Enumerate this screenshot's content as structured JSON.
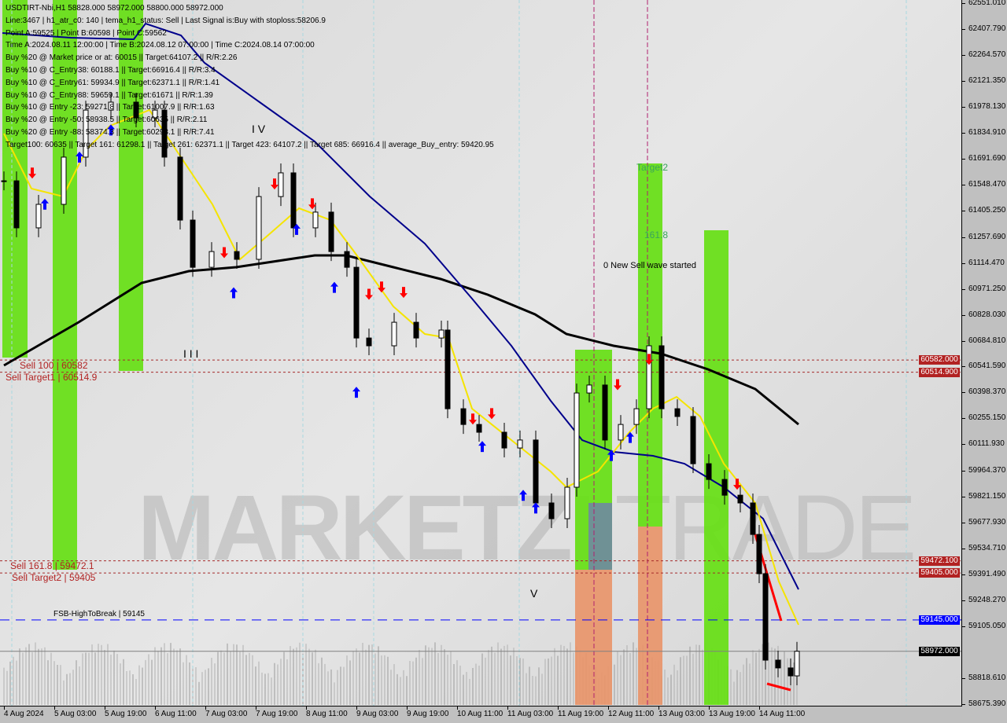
{
  "header": {
    "lines": [
      "USDTIRT-Nbi,H1  58828.000 58972.000 58800.000 58972.000",
      "Line:3467 | h1_atr_c0: 140 | tema_h1_status: Sell | Last Signal is:Buy with stoploss:58206.9",
      "Point A:59525 | Point B:60598 | Point C:59562",
      "Time A:2024.08.11 12:00:00 | Time B:2024.08.12 07:00:00 | Time C:2024.08.14 07:00:00",
      "Buy %20 @ Market price or at: 60015 || Target:64107.2 || R/R:2.26",
      "Buy %10 @ C_Entry38: 60188.1 || Target:66916.4 || R/R:3.4",
      "Buy %10 @ C_Entry61: 59934.9 || Target:62371.1 || R/R:1.41",
      "Buy %10 @ C_Entry88: 59659.1 || Target:61671 || R/R:1.39",
      "Buy %10 @ Entry -23: 59271.8 || Target:61007.9 || R/R:1.63",
      "Buy %20 @ Entry -50: 58938.5 || Target:60635 || R/R:2.11",
      "Buy %20 @ Entry -88: 58374.3 || Target:60298.1 || R/R:7.41",
      "Target100: 60635 || Target 161: 61298.1 || Target 261: 62371.1 || Target 423: 64107.2 || Target 685: 66916.4 || average_Buy_entry: 59420.95"
    ]
  },
  "levels": [
    {
      "label": "Sell 100 | 60582",
      "price": 60582.0,
      "badge": "60582.000",
      "color": "#b22222"
    },
    {
      "label": "Sell Target1 | 60514.9",
      "price": 60514.9,
      "badge": "60514.900",
      "color": "#b22222"
    },
    {
      "label": "Sell 161.8 | 59472.1",
      "price": 59472.1,
      "badge": "59472.100",
      "color": "#b22222"
    },
    {
      "label": "Sell Target2 | 59405",
      "price": 59405.0,
      "badge": "59405.000",
      "color": "#b22222"
    },
    {
      "label": "FSB-HighToBreak | 59145",
      "price": 59145.0,
      "badge": "59145.000",
      "color": "#0000ff"
    },
    {
      "label": "",
      "price": 58972.0,
      "badge": "58972.000",
      "color": "#000000"
    }
  ],
  "annotations": {
    "wave_iv": "I V",
    "wave_iii": "I I I",
    "wave_v": "V",
    "target2": "Target2",
    "fib_1618": "161.8",
    "new_wave": "0 New Sell wave started"
  },
  "watermark": {
    "bold": "MARKETZI",
    "light": "TRADE"
  },
  "colors": {
    "up_zone": "#66e014",
    "sell_zone": "#e8956a",
    "blue_ma": "#00008b",
    "black_ma": "#000000",
    "yellow_line": "#ffff00",
    "buy_arrow": "#0000ff",
    "sell_arrow": "#ff0000"
  },
  "chart_data": {
    "type": "candlestick",
    "symbol": "USDTIRT-Nbi",
    "timeframe": "H1",
    "ylim": [
      58675.39,
      62551.01
    ],
    "y_ticks": [
      "62551.010",
      "62407.790",
      "62264.570",
      "62121.350",
      "61978.130",
      "61834.910",
      "61691.690",
      "61548.470",
      "61405.250",
      "61257.690",
      "61114.470",
      "60971.250",
      "60828.030",
      "60684.810",
      "60541.590",
      "60398.370",
      "60255.150",
      "60111.930",
      "59964.370",
      "59821.150",
      "59677.930",
      "59534.710",
      "59391.490",
      "59248.270",
      "59105.050",
      "58818.610",
      "58675.390"
    ],
    "x_ticks": [
      "4 Aug 2024",
      "5 Aug 03:00",
      "5 Aug 19:00",
      "6 Aug 11:00",
      "7 Aug 03:00",
      "7 Aug 19:00",
      "8 Aug 11:00",
      "9 Aug 03:00",
      "9 Aug 19:00",
      "10 Aug 11:00",
      "11 Aug 03:00",
      "11 Aug 19:00",
      "12 Aug 11:00",
      "13 Aug 03:00",
      "13 Aug 19:00",
      "14 Aug 11:00"
    ],
    "closes": [
      [
        "4 Aug 11:00",
        61573
      ],
      [
        "4 Aug 15:00",
        61313
      ],
      [
        "4 Aug 22:00",
        61443
      ],
      [
        "5 Aug 06:00",
        61704
      ],
      [
        "5 Aug 13:00",
        61964
      ],
      [
        "5 Aug 21:00",
        62008
      ],
      [
        "6 Aug 05:00",
        61921
      ],
      [
        "6 Aug 11:00",
        61964
      ],
      [
        "6 Aug 14:00",
        61704
      ],
      [
        "6 Aug 19:00",
        61356
      ],
      [
        "6 Aug 23:00",
        61095
      ],
      [
        "7 Aug 05:00",
        61182
      ],
      [
        "7 Aug 13:00",
        61139
      ],
      [
        "7 Aug 20:00",
        61486
      ],
      [
        "8 Aug 03:00",
        61617
      ],
      [
        "8 Aug 07:00",
        61313
      ],
      [
        "8 Aug 14:00",
        61400
      ],
      [
        "8 Aug 19:00",
        61182
      ],
      [
        "9 Aug 00:00",
        61095
      ],
      [
        "9 Aug 03:00",
        60704
      ],
      [
        "9 Aug 07:00",
        60661
      ],
      [
        "9 Aug 15:00",
        60791
      ],
      [
        "9 Aug 22:00",
        60704
      ],
      [
        "10 Aug 06:00",
        60748
      ],
      [
        "10 Aug 08:00",
        60313
      ],
      [
        "10 Aug 13:00",
        60226
      ],
      [
        "10 Aug 18:00",
        60183
      ],
      [
        "11 Aug 02:00",
        60096
      ],
      [
        "11 Aug 07:00",
        60140
      ],
      [
        "11 Aug 12:00",
        59792
      ],
      [
        "11 Aug 17:00",
        59705
      ],
      [
        "11 Aug 22:00",
        59879
      ],
      [
        "12 Aug 01:00",
        60400
      ],
      [
        "12 Aug 05:00",
        60444
      ],
      [
        "12 Aug 10:00",
        60140
      ],
      [
        "12 Aug 15:00",
        60226
      ],
      [
        "12 Aug 20:00",
        60313
      ],
      [
        "13 Aug 00:00",
        60661
      ],
      [
        "13 Aug 04:00",
        60313
      ],
      [
        "13 Aug 09:00",
        60270
      ],
      [
        "13 Aug 14:00",
        60009
      ],
      [
        "13 Aug 19:00",
        59922
      ],
      [
        "14 Aug 00:00",
        59835
      ],
      [
        "14 Aug 05:00",
        59792
      ],
      [
        "14 Aug 09:00",
        59618
      ],
      [
        "14 Aug 11:00",
        59401
      ],
      [
        "14 Aug 13:00",
        58923
      ],
      [
        "14 Aug 17:00",
        58880
      ],
      [
        "14 Aug 21:00",
        58836
      ],
      [
        "14 Aug 23:00",
        58972
      ]
    ],
    "signals": [
      [
        "5 Aug 00:00",
        61440,
        "buy"
      ],
      [
        "5 Aug 11:00",
        61700,
        "buy"
      ],
      [
        "5 Aug 21:00",
        61850,
        "buy"
      ],
      [
        "4 Aug 20:00",
        61620,
        "sell"
      ],
      [
        "7 Aug 12:00",
        60950,
        "buy"
      ],
      [
        "7 Aug 09:00",
        61180,
        "sell"
      ],
      [
        "8 Aug 01:00",
        61560,
        "sell"
      ],
      [
        "8 Aug 13:00",
        61450,
        "sell"
      ],
      [
        "8 Aug 08:00",
        61300,
        "buy"
      ],
      [
        "8 Aug 20:00",
        60980,
        "buy"
      ],
      [
        "9 Aug 03:00",
        60400,
        "buy"
      ],
      [
        "9 Aug 07:00",
        60950,
        "sell"
      ],
      [
        "9 Aug 11:00",
        60990,
        "sell"
      ],
      [
        "9 Aug 18:00",
        60960,
        "sell"
      ],
      [
        "10 Aug 16:00",
        60260,
        "sell"
      ],
      [
        "10 Aug 22:00",
        60290,
        "sell"
      ],
      [
        "10 Aug 19:00",
        60100,
        "buy"
      ],
      [
        "11 Aug 08:00",
        59830,
        "buy"
      ],
      [
        "11 Aug 12:00",
        59760,
        "buy"
      ],
      [
        "12 Aug 12:00",
        60050,
        "buy"
      ],
      [
        "12 Aug 14:00",
        60450,
        "sell"
      ],
      [
        "12 Aug 18:00",
        60150,
        "buy"
      ],
      [
        "13 Aug 00:00",
        60590,
        "sell"
      ],
      [
        "14 Aug 04:00",
        59900,
        "sell"
      ]
    ]
  }
}
